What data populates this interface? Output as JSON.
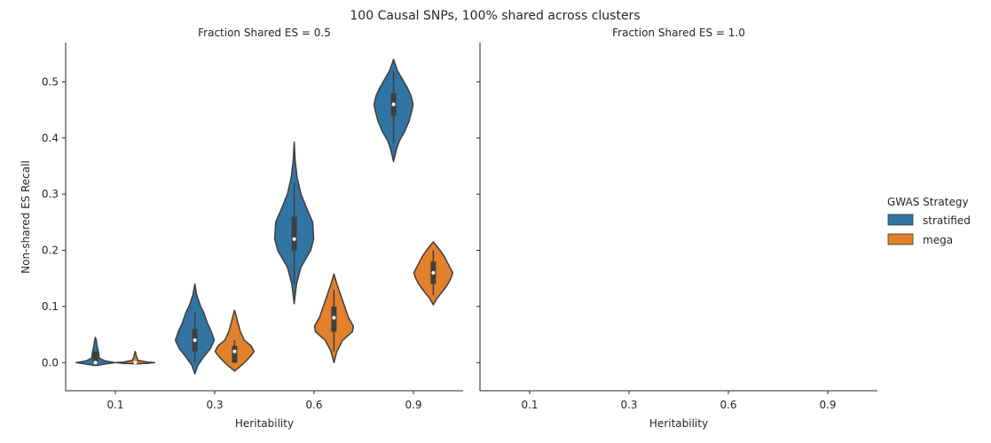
{
  "figure": {
    "suptitle": "100 Causal SNPs, 100% shared across clusters"
  },
  "legend": {
    "title": "GWAS Strategy",
    "placement": "right",
    "items": [
      {
        "name": "stratified",
        "color": "#3274a1"
      },
      {
        "name": "mega",
        "color": "#e1812c"
      }
    ]
  },
  "chart_data": [
    {
      "type": "violin",
      "title": "Fraction Shared ES = 0.5",
      "xlabel": "Heritability",
      "ylabel": "Non-shared ES Recall",
      "categories": [
        "0.1",
        "0.3",
        "0.6",
        "0.9"
      ],
      "yticks": [
        "0.0",
        "0.1",
        "0.2",
        "0.3",
        "0.4",
        "0.5"
      ],
      "ylim": [
        -0.05,
        0.57
      ],
      "grid": false,
      "series": [
        {
          "name": "stratified",
          "color": "#3274a1",
          "violins": [
            {
              "min": -0.005,
              "max": 0.045,
              "q1": 0.0,
              "median": 0.0,
              "q3": 0.02,
              "whisker_low": 0.0,
              "whisker_high": 0.02,
              "profile": [
                [
                  -0.005,
                  0.05
                ],
                [
                  -0.002,
                  0.6
                ],
                [
                  0.0,
                  1.0
                ],
                [
                  0.003,
                  0.5
                ],
                [
                  0.008,
                  0.2
                ],
                [
                  0.02,
                  0.15
                ],
                [
                  0.03,
                  0.08
                ],
                [
                  0.04,
                  0.04
                ],
                [
                  0.045,
                  0.0
                ]
              ]
            },
            {
              "min": -0.02,
              "max": 0.14,
              "q1": 0.02,
              "median": 0.04,
              "q3": 0.06,
              "whisker_low": 0.0,
              "whisker_high": 0.09,
              "profile": [
                [
                  -0.02,
                  0.0
                ],
                [
                  -0.005,
                  0.15
                ],
                [
                  0.01,
                  0.45
                ],
                [
                  0.025,
                  0.8
                ],
                [
                  0.04,
                  1.0
                ],
                [
                  0.055,
                  0.85
                ],
                [
                  0.07,
                  0.65
                ],
                [
                  0.09,
                  0.45
                ],
                [
                  0.1,
                  0.3
                ],
                [
                  0.12,
                  0.1
                ],
                [
                  0.14,
                  0.0
                ]
              ]
            },
            {
              "min": 0.105,
              "max": 0.393,
              "q1": 0.2,
              "median": 0.22,
              "q3": 0.26,
              "whisker_low": 0.14,
              "whisker_high": 0.32,
              "profile": [
                [
                  0.105,
                  0.0
                ],
                [
                  0.14,
                  0.12
                ],
                [
                  0.17,
                  0.35
                ],
                [
                  0.2,
                  0.85
                ],
                [
                  0.22,
                  1.0
                ],
                [
                  0.25,
                  0.95
                ],
                [
                  0.27,
                  0.7
                ],
                [
                  0.3,
                  0.35
                ],
                [
                  0.33,
                  0.15
                ],
                [
                  0.36,
                  0.05
                ],
                [
                  0.393,
                  0.0
                ]
              ]
            },
            {
              "min": 0.358,
              "max": 0.54,
              "q1": 0.44,
              "median": 0.46,
              "q3": 0.48,
              "whisker_low": 0.39,
              "whisker_high": 0.52,
              "profile": [
                [
                  0.358,
                  0.0
                ],
                [
                  0.38,
                  0.15
                ],
                [
                  0.395,
                  0.3
                ],
                [
                  0.41,
                  0.55
                ],
                [
                  0.43,
                  0.8
                ],
                [
                  0.45,
                  0.95
                ],
                [
                  0.46,
                  1.0
                ],
                [
                  0.475,
                  0.9
                ],
                [
                  0.49,
                  0.7
                ],
                [
                  0.505,
                  0.45
                ],
                [
                  0.52,
                  0.2
                ],
                [
                  0.54,
                  0.0
                ]
              ]
            }
          ]
        },
        {
          "name": "mega",
          "color": "#e1812c",
          "violins": [
            {
              "min": -0.002,
              "max": 0.02,
              "q1": 0.0,
              "median": 0.0,
              "q3": 0.0,
              "whisker_low": 0.0,
              "whisker_high": 0.0,
              "profile": [
                [
                  -0.002,
                  0.1
                ],
                [
                  -0.001,
                  0.7
                ],
                [
                  0.0,
                  1.0
                ],
                [
                  0.001,
                  0.6
                ],
                [
                  0.004,
                  0.15
                ],
                [
                  0.01,
                  0.07
                ],
                [
                  0.015,
                  0.04
                ],
                [
                  0.02,
                  0.0
                ]
              ]
            },
            {
              "min": -0.015,
              "max": 0.093,
              "q1": 0.0,
              "median": 0.02,
              "q3": 0.03,
              "whisker_low": 0.0,
              "whisker_high": 0.04,
              "profile": [
                [
                  -0.015,
                  0.0
                ],
                [
                  -0.005,
                  0.35
                ],
                [
                  0.005,
                  0.65
                ],
                [
                  0.015,
                  0.9
                ],
                [
                  0.02,
                  1.0
                ],
                [
                  0.03,
                  0.85
                ],
                [
                  0.04,
                  0.5
                ],
                [
                  0.055,
                  0.3
                ],
                [
                  0.07,
                  0.18
                ],
                [
                  0.085,
                  0.07
                ],
                [
                  0.093,
                  0.0
                ]
              ]
            },
            {
              "min": 0.0,
              "max": 0.158,
              "q1": 0.055,
              "median": 0.08,
              "q3": 0.1,
              "whisker_low": 0.02,
              "whisker_high": 0.13,
              "profile": [
                [
                  0.0,
                  0.0
                ],
                [
                  0.02,
                  0.15
                ],
                [
                  0.04,
                  0.45
                ],
                [
                  0.055,
                  0.95
                ],
                [
                  0.065,
                  1.0
                ],
                [
                  0.08,
                  0.75
                ],
                [
                  0.1,
                  0.55
                ],
                [
                  0.12,
                  0.35
                ],
                [
                  0.14,
                  0.15
                ],
                [
                  0.158,
                  0.0
                ]
              ]
            },
            {
              "min": 0.103,
              "max": 0.215,
              "q1": 0.14,
              "median": 0.16,
              "q3": 0.18,
              "whisker_low": 0.12,
              "whisker_high": 0.2,
              "profile": [
                [
                  0.103,
                  0.0
                ],
                [
                  0.115,
                  0.2
                ],
                [
                  0.13,
                  0.55
                ],
                [
                  0.14,
                  0.75
                ],
                [
                  0.15,
                  0.9
                ],
                [
                  0.16,
                  1.0
                ],
                [
                  0.17,
                  0.85
                ],
                [
                  0.18,
                  0.7
                ],
                [
                  0.19,
                  0.55
                ],
                [
                  0.2,
                  0.35
                ],
                [
                  0.215,
                  0.0
                ]
              ]
            }
          ]
        }
      ]
    },
    {
      "type": "violin",
      "title": "Fraction Shared ES = 1.0",
      "xlabel": "Heritability",
      "ylabel": "",
      "categories": [
        "0.1",
        "0.3",
        "0.6",
        "0.9"
      ],
      "ylim": [
        -0.05,
        0.57
      ],
      "grid": false,
      "series": []
    }
  ]
}
